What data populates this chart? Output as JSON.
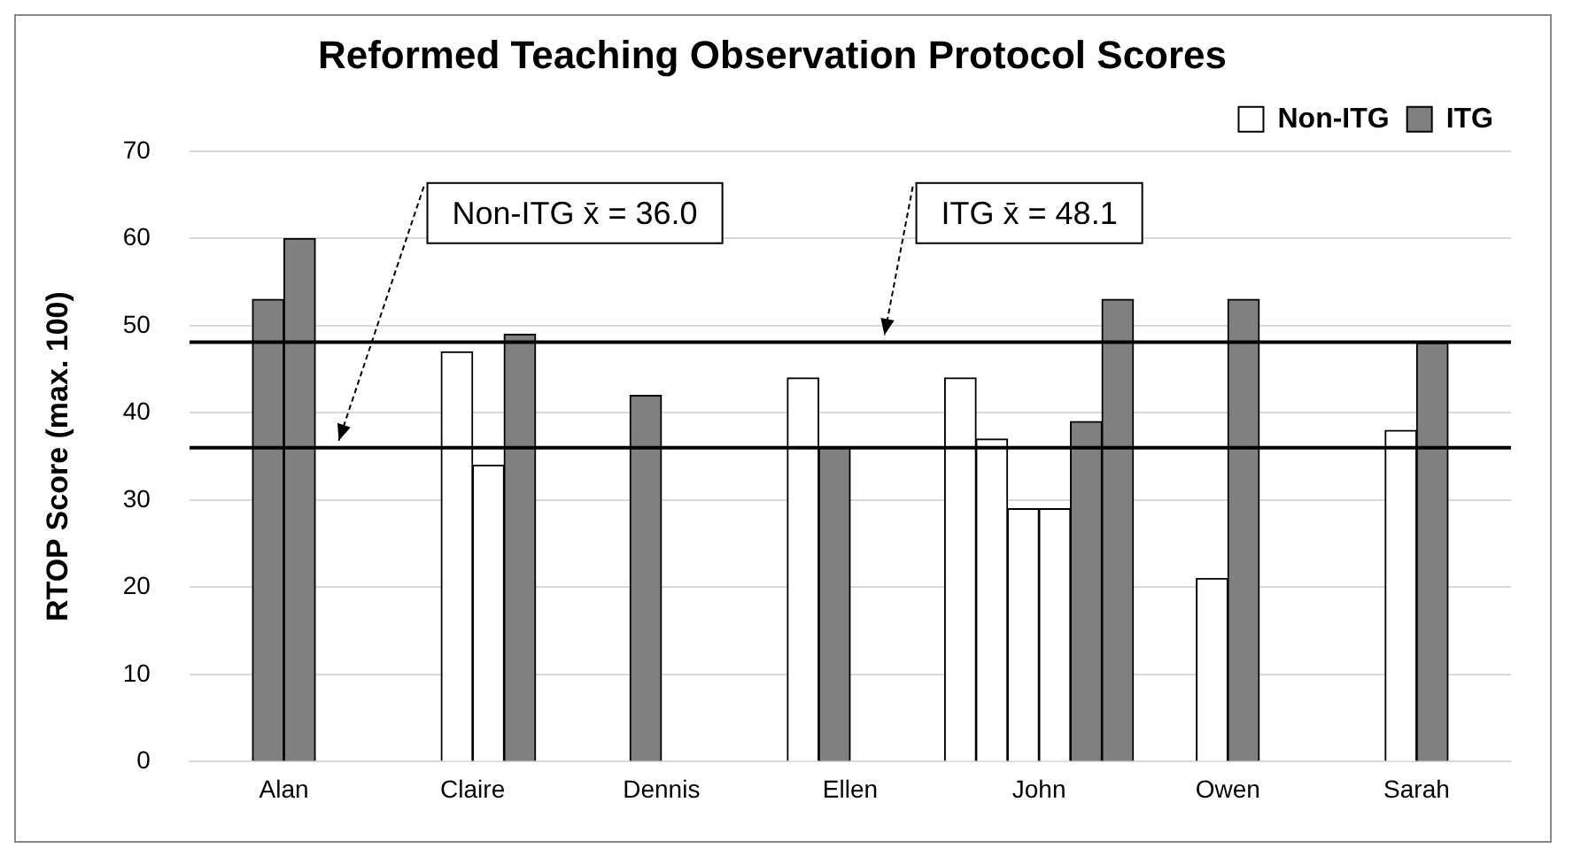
{
  "chart_data": {
    "type": "bar",
    "title": "Reformed Teaching Observation Protocol Scores",
    "ylabel": "RTOP Score (max. 100)",
    "categories": [
      "Alan",
      "Claire",
      "Dennis",
      "Ellen",
      "John",
      "Owen",
      "Sarah"
    ],
    "series": [
      {
        "colors": [
          null,
          null,
          null,
          null,
          "#ffffff",
          null,
          null
        ],
        "values": [
          null,
          null,
          null,
          null,
          44,
          null,
          null
        ]
      },
      {
        "colors": [
          null,
          null,
          null,
          "#ffffff",
          "#ffffff",
          null,
          null
        ],
        "values": [
          null,
          null,
          null,
          44,
          37,
          null,
          null
        ]
      },
      {
        "colors": [
          "#808080",
          "#ffffff",
          "#808080",
          "#808080",
          "#ffffff",
          "#ffffff",
          "#ffffff"
        ],
        "values": [
          53,
          47,
          42,
          36,
          29,
          21,
          38
        ]
      },
      {
        "colors": [
          "#808080",
          "#ffffff",
          null,
          null,
          "#ffffff",
          "#808080",
          "#808080"
        ],
        "values": [
          60,
          34,
          null,
          null,
          29,
          53,
          48
        ]
      },
      {
        "colors": [
          null,
          "#808080",
          null,
          null,
          "#808080",
          null,
          null
        ],
        "values": [
          null,
          49,
          null,
          null,
          39,
          null,
          null
        ]
      },
      {
        "colors": [
          null,
          null,
          null,
          null,
          "#808080",
          null,
          null
        ],
        "values": [
          null,
          null,
          null,
          null,
          53,
          null,
          null
        ]
      },
      {
        "name": "Non-ITG",
        "color": "#ffffff",
        "values": [
          null,
          null,
          null,
          null,
          null,
          null,
          null
        ]
      },
      {
        "name": "ITG",
        "color": "#808080",
        "values": [
          null,
          null,
          null,
          null,
          null,
          null,
          null
        ]
      }
    ],
    "ylim": [
      0,
      70
    ],
    "yticks": [
      0,
      10,
      20,
      30,
      40,
      50,
      60,
      70
    ],
    "grid": "y",
    "legend": "top right",
    "ref_lines": [
      {
        "axis": "y",
        "value": 36.0,
        "label": "Non-ITG x̄ = 36.0",
        "color": "#000000"
      },
      {
        "axis": "y",
        "value": 48.1,
        "label": "ITG x̄ = 48.1",
        "color": "#000000"
      }
    ]
  }
}
